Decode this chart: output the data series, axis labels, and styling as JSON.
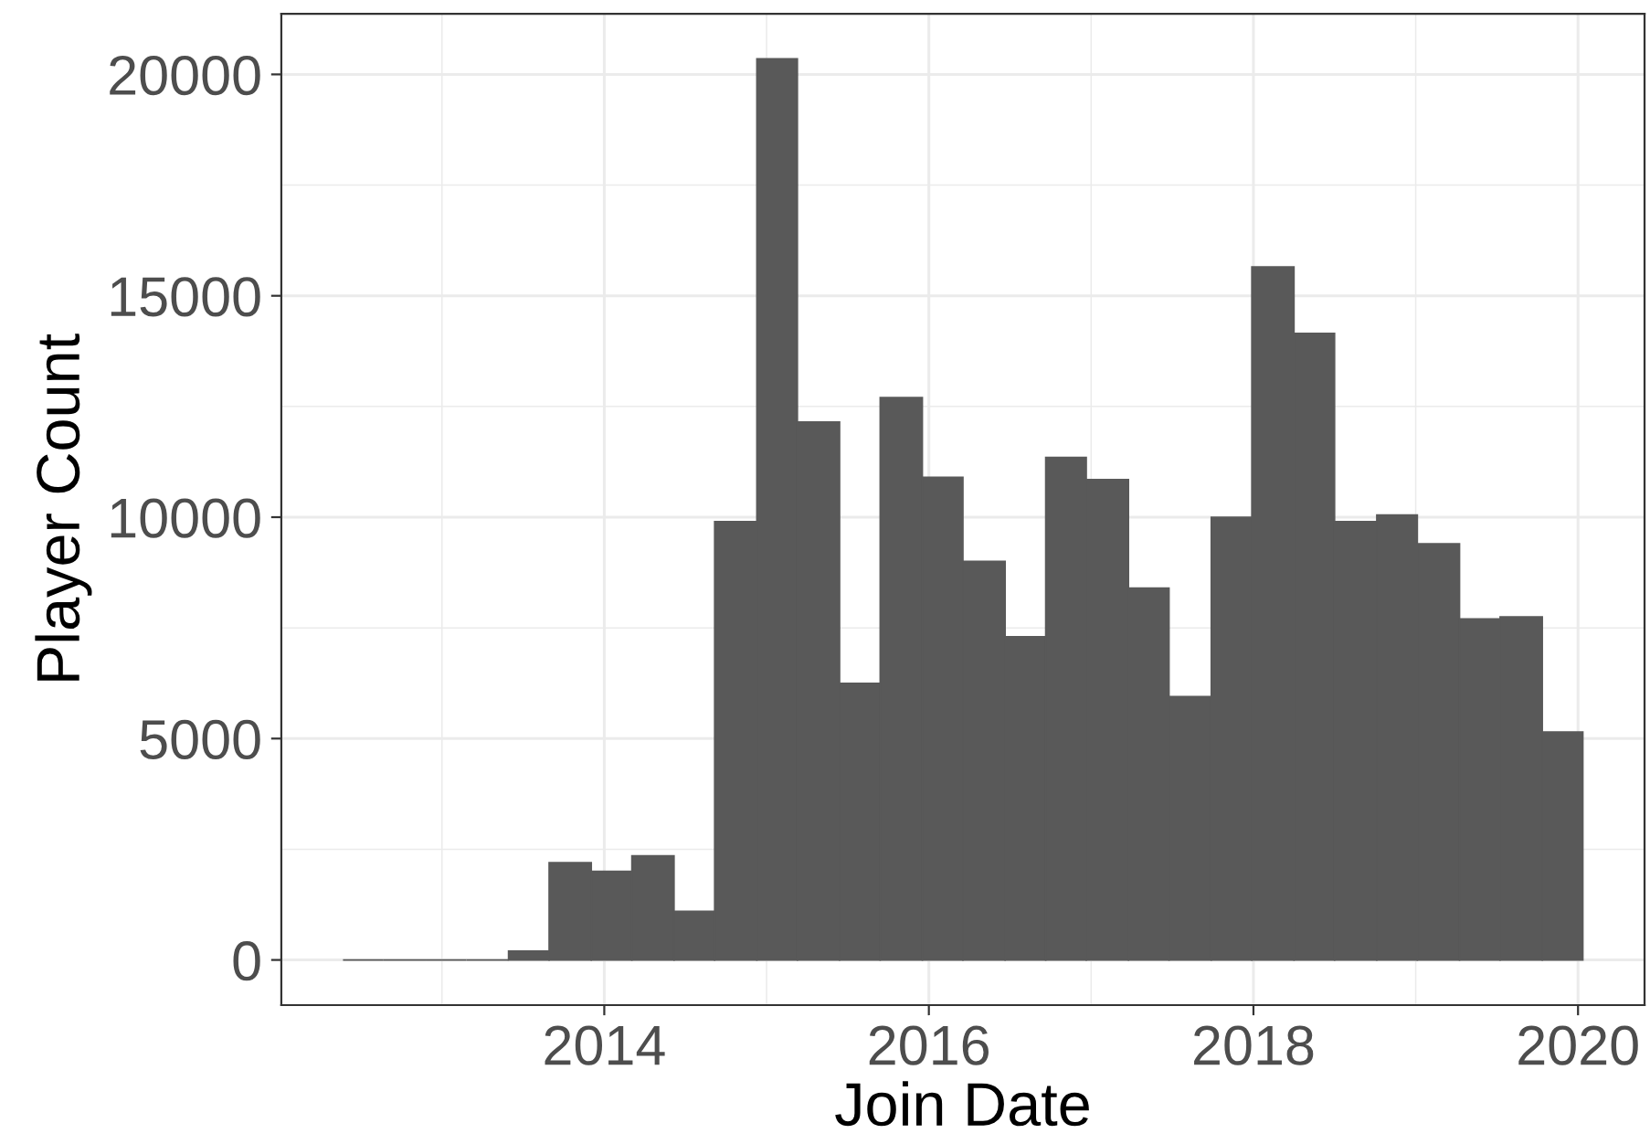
{
  "chart_data": {
    "type": "histogram",
    "xlabel": "Join Date",
    "ylabel": "Player Count",
    "bins": [
      2012.39,
      2012.64,
      2012.9,
      2013.15,
      2013.41,
      2013.66,
      2013.92,
      2014.17,
      2014.43,
      2014.68,
      2014.94,
      2015.19,
      2015.45,
      2015.7,
      2015.96,
      2016.21,
      2016.47,
      2016.72,
      2016.97,
      2017.23,
      2017.48,
      2017.74,
      2017.99,
      2018.25,
      2018.5,
      2018.76,
      2019.01,
      2019.27,
      2019.52,
      2019.78,
      2020.03
    ],
    "values": [
      0,
      0,
      0,
      0,
      200,
      2200,
      2000,
      2350,
      1100,
      9900,
      20350,
      12150,
      6250,
      12700,
      10900,
      9000,
      7300,
      11350,
      10850,
      8400,
      5950,
      10000,
      15650,
      14150,
      9900,
      10050,
      9400,
      7700,
      7750,
      5150
    ],
    "color": "#595959",
    "xlim": [
      2012.01,
      2020.41
    ],
    "xticks": [
      2014,
      2016,
      2018,
      2020
    ],
    "ylim": [
      -1020,
      21370
    ],
    "yticks": [
      0,
      5000,
      10000,
      15000,
      20000
    ],
    "grid": true
  }
}
